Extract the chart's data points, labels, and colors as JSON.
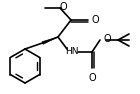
{
  "bg": "#ffffff",
  "lc": "#000000",
  "lw": 1.2,
  "fs": 6.0,
  "figsize": [
    1.4,
    0.94
  ],
  "dpi": 100,
  "xlim": [
    0,
    140
  ],
  "ylim": [
    0,
    94
  ]
}
